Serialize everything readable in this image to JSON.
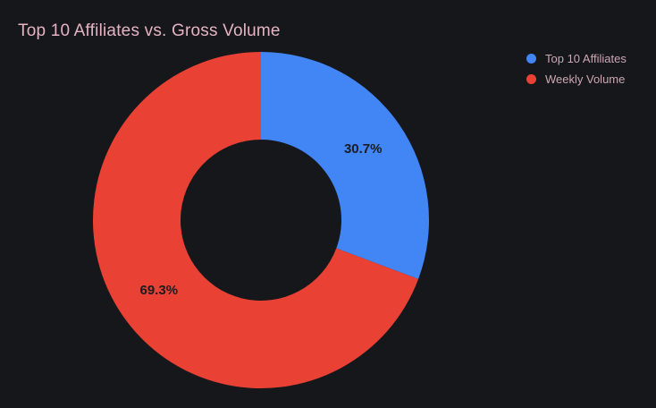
{
  "chart_data": {
    "type": "pie",
    "donut": true,
    "title": "Top 10 Affiliates vs. Gross Volume",
    "legend_position": "right",
    "start_angle_deg": 0,
    "inner_radius_ratio": 0.48,
    "grid": false,
    "slices": [
      {
        "label": "Top 10 Affiliates",
        "value": 30.7,
        "display": "30.7%",
        "color": "#4285f4"
      },
      {
        "label": "Weekly Volume",
        "value": 69.3,
        "display": "69.3%",
        "color": "#e94235"
      }
    ]
  },
  "style": {
    "background": "#16171b",
    "title_color": "#e5b3c1",
    "legend_text_color": "#cda7b2",
    "slice_label_color": "#1b1c20"
  }
}
